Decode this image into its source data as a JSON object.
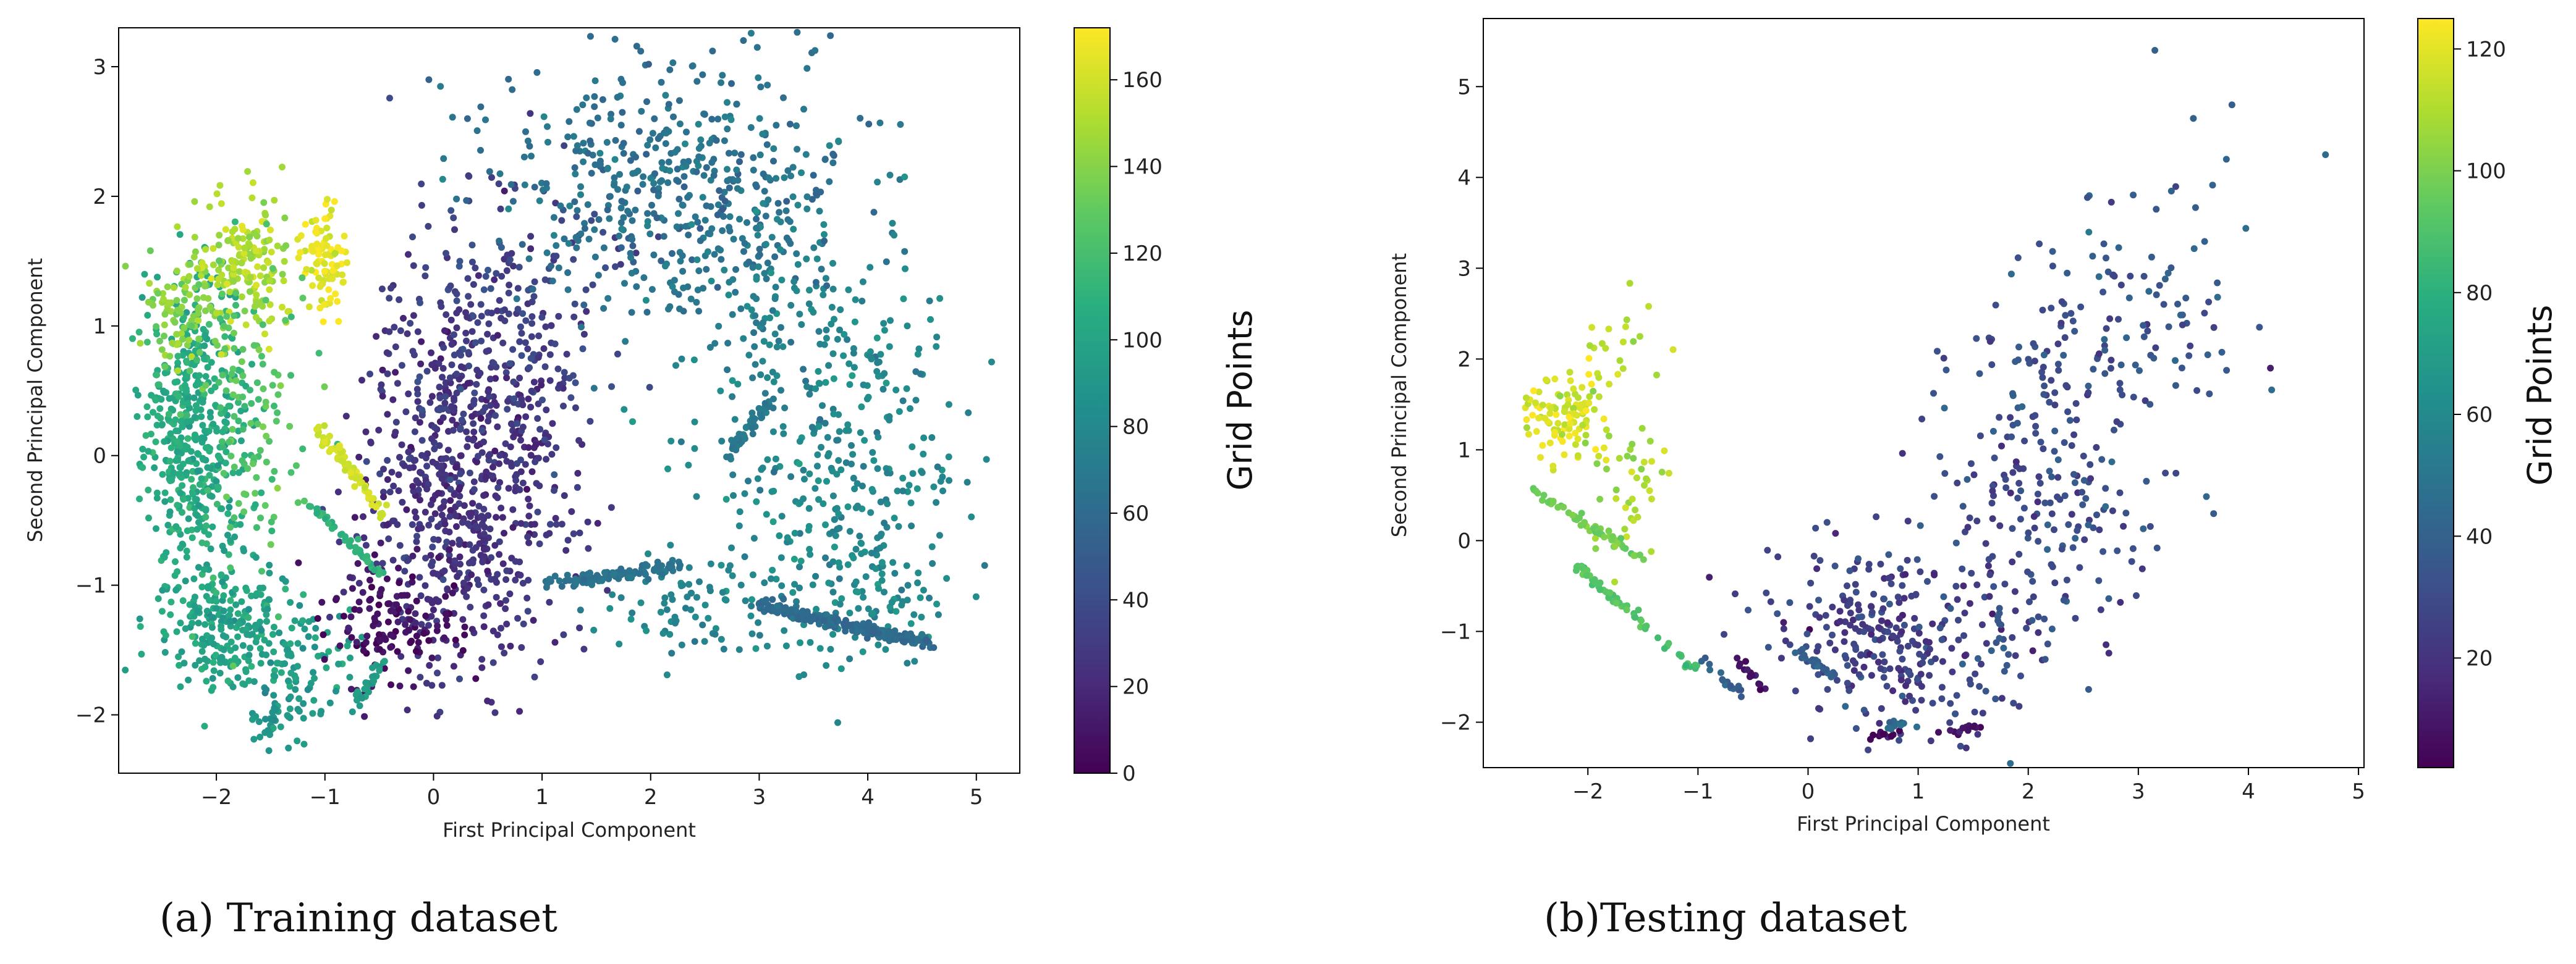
{
  "chart_data": [
    {
      "type": "scatter",
      "title": "",
      "caption": "(a) Training dataset",
      "xlabel": "First Principal Component",
      "ylabel": "Second Principal Component",
      "xlim": [
        -2.9,
        5.4
      ],
      "ylim": [
        -2.45,
        3.3
      ],
      "xticks": [
        -2,
        -1,
        0,
        1,
        2,
        3,
        4,
        5
      ],
      "yticks": [
        -2,
        -1,
        0,
        1,
        2,
        3
      ],
      "colormap": "viridis",
      "colorbar": {
        "label": "Grid Points",
        "range": [
          0,
          172
        ],
        "ticks": [
          0,
          20,
          40,
          60,
          80,
          100,
          120,
          140,
          160
        ]
      },
      "clusters": [
        {
          "x": -2.2,
          "y": 0.2,
          "sx": 0.25,
          "sy": 0.55,
          "c": 105,
          "n": 480
        },
        {
          "x": -2.3,
          "y": 1.15,
          "sx": 0.18,
          "sy": 0.2,
          "c": 140,
          "n": 90
        },
        {
          "x": -1.7,
          "y": 1.45,
          "sx": 0.22,
          "sy": 0.3,
          "c": 150,
          "n": 160
        },
        {
          "x": -1.0,
          "y": 1.55,
          "sx": 0.12,
          "sy": 0.25,
          "c": 165,
          "n": 90
        },
        {
          "x": -1.9,
          "y": -1.3,
          "sx": 0.3,
          "sy": 0.3,
          "c": 100,
          "n": 230
        },
        {
          "x": -1.2,
          "y": -1.55,
          "sx": 0.25,
          "sy": 0.2,
          "c": 95,
          "n": 70
        },
        {
          "x": -1.4,
          "y": -2.0,
          "sx": 0.15,
          "sy": 0.12,
          "c": 90,
          "n": 50
        },
        {
          "x": -1.7,
          "y": 0.3,
          "sx": 0.25,
          "sy": 0.6,
          "c": 125,
          "n": 120
        },
        {
          "x": 0.3,
          "y": -0.2,
          "sx": 0.45,
          "sy": 0.75,
          "c": 25,
          "n": 700
        },
        {
          "x": -0.4,
          "y": -1.3,
          "sx": 0.3,
          "sy": 0.25,
          "c": 8,
          "n": 140
        },
        {
          "x": 0.6,
          "y": 1.0,
          "sx": 0.5,
          "sy": 0.6,
          "c": 35,
          "n": 220
        },
        {
          "x": 2.2,
          "y": 2.1,
          "sx": 0.85,
          "sy": 0.5,
          "c": 65,
          "n": 480
        },
        {
          "x": 3.7,
          "y": 0.0,
          "sx": 0.6,
          "sy": 0.75,
          "c": 80,
          "n": 300
        },
        {
          "x": 3.0,
          "y": 1.2,
          "sx": 0.5,
          "sy": 0.5,
          "c": 75,
          "n": 120
        },
        {
          "x": 2.5,
          "y": -1.2,
          "sx": 0.5,
          "sy": 0.2,
          "c": 78,
          "n": 90
        },
        {
          "x": 4.1,
          "y": -0.9,
          "sx": 0.35,
          "sy": 0.35,
          "c": 82,
          "n": 90
        }
      ],
      "streaks": [
        {
          "x1": -1.05,
          "y1": 0.2,
          "x2": -0.45,
          "y2": -0.45,
          "c": 160,
          "n": 70
        },
        {
          "x1": -1.1,
          "y1": -0.4,
          "x2": -0.5,
          "y2": -0.9,
          "c": 110,
          "n": 40
        },
        {
          "x1": 1.0,
          "y1": -1.0,
          "x2": 2.3,
          "y2": -0.85,
          "c": 65,
          "n": 110
        },
        {
          "x1": 3.0,
          "y1": -1.15,
          "x2": 4.55,
          "y2": -1.45,
          "c": 60,
          "n": 220
        },
        {
          "x1": 2.7,
          "y1": 0.0,
          "x2": 3.2,
          "y2": 0.5,
          "c": 70,
          "n": 50
        },
        {
          "x1": -0.75,
          "y1": -1.95,
          "x2": -0.45,
          "y2": -1.6,
          "c": 95,
          "n": 30
        }
      ]
    },
    {
      "type": "scatter",
      "title": "",
      "caption": "(b)Testing dataset",
      "xlabel": "First Principal Component",
      "ylabel": "Second Principal Component",
      "xlim": [
        -2.95,
        5.05
      ],
      "ylim": [
        -2.5,
        5.75
      ],
      "xticks": [
        -2,
        -1,
        0,
        1,
        2,
        3,
        4,
        5
      ],
      "yticks": [
        -2,
        -1,
        0,
        1,
        2,
        3,
        4,
        5
      ],
      "colormap": "viridis",
      "colorbar": {
        "label": "Grid Points",
        "range": [
          2,
          125
        ],
        "ticks": [
          20,
          40,
          60,
          80,
          100,
          120
        ]
      },
      "clusters": [
        {
          "x": -2.2,
          "y": 1.4,
          "sx": 0.18,
          "sy": 0.25,
          "c": 118,
          "n": 110
        },
        {
          "x": -1.8,
          "y": 2.1,
          "sx": 0.25,
          "sy": 0.25,
          "c": 112,
          "n": 20
        },
        {
          "x": -1.6,
          "y": 0.6,
          "sx": 0.2,
          "sy": 0.35,
          "c": 108,
          "n": 40
        },
        {
          "x": 0.8,
          "y": -1.1,
          "sx": 0.55,
          "sy": 0.55,
          "c": 25,
          "n": 300
        },
        {
          "x": 2.2,
          "y": 0.8,
          "sx": 0.55,
          "sy": 1.1,
          "c": 30,
          "n": 260
        },
        {
          "x": 3.1,
          "y": 2.6,
          "sx": 0.45,
          "sy": 0.6,
          "c": 35,
          "n": 70
        }
      ],
      "streaks": [
        {
          "x1": -2.5,
          "y1": 0.55,
          "x2": -1.5,
          "y2": -0.2,
          "c": 98,
          "n": 60
        },
        {
          "x1": -2.1,
          "y1": -0.3,
          "x2": -1.45,
          "y2": -0.95,
          "c": 92,
          "n": 45
        },
        {
          "x1": -1.35,
          "y1": -1.1,
          "x2": -1.0,
          "y2": -1.45,
          "c": 88,
          "n": 14
        },
        {
          "x1": -0.95,
          "y1": -1.3,
          "x2": -0.6,
          "y2": -1.7,
          "c": 40,
          "n": 16
        },
        {
          "x1": -0.65,
          "y1": -1.3,
          "x2": -0.4,
          "y2": -1.65,
          "c": 8,
          "n": 14
        },
        {
          "x1": 0.5,
          "y1": -2.15,
          "x2": 0.8,
          "y2": -2.1,
          "c": 5,
          "n": 10
        },
        {
          "x1": 0.75,
          "y1": -2.05,
          "x2": 1.0,
          "y2": -2.0,
          "c": 45,
          "n": 10
        },
        {
          "x1": 1.2,
          "y1": -2.1,
          "x2": 1.65,
          "y2": -2.05,
          "c": 8,
          "n": 14
        },
        {
          "x1": -0.1,
          "y1": -1.2,
          "x2": 0.25,
          "y2": -1.5,
          "c": 40,
          "n": 24
        },
        {
          "x1": 1.7,
          "y1": -0.7,
          "x2": 1.8,
          "y2": -1.4,
          "c": 38,
          "n": 10
        }
      ],
      "outliers": [
        {
          "x": 3.15,
          "y": 5.4,
          "c": 40
        },
        {
          "x": 3.5,
          "y": 4.65,
          "c": 40
        },
        {
          "x": 3.85,
          "y": 4.8,
          "c": 38
        },
        {
          "x": 3.8,
          "y": 4.2,
          "c": 42
        },
        {
          "x": 4.7,
          "y": 4.25,
          "c": 45
        },
        {
          "x": 3.3,
          "y": 3.85,
          "c": 40
        },
        {
          "x": 4.2,
          "y": 1.9,
          "c": 12
        },
        {
          "x": 4.1,
          "y": 2.35,
          "c": 35
        }
      ]
    }
  ]
}
